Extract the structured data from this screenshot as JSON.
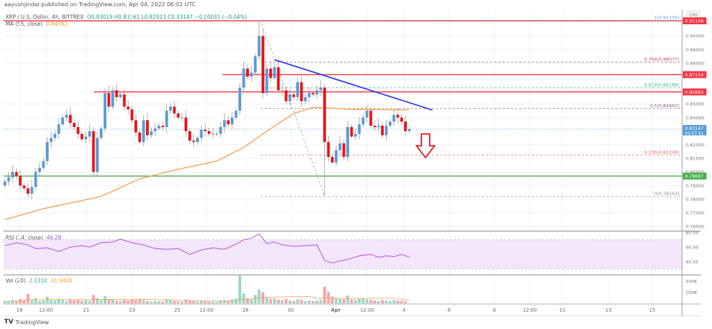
{
  "header": {
    "publisher": "aayushjindal published on TradingView.com, Apr 04, 2022 06:02 UTC",
    "symbol": "XRP / U.S. Dollar, 4h, BITTREX",
    "ohlc": "O0.83019 H0.83361 L0.82923 C0.83147 −0.00031 (−0.04%)",
    "ma_label": "MA (55, close)",
    "ma_value": "0.84562",
    "rsi_label": "RSI (14, close)",
    "rsi_value": "46.28",
    "vol_label": "Vol (20)",
    "vol_value": "2.131K",
    "vol_ma_value": "31.942K"
  },
  "footer": {
    "brand": "TradingView"
  },
  "colors": {
    "up": "#5b9bd5",
    "down": "#e8141c",
    "ma": "#f5a05a",
    "rsi": "#b35fd9",
    "trend": "#2d3ee0",
    "support": "#4caf50",
    "resistance": "#f23645"
  },
  "chart_data": {
    "type": "candlestick",
    "title": "XRP / U.S. Dollar, 4h, BITTREX",
    "currency_label": "USD",
    "ylim": [
      0.755,
      0.917
    ],
    "y_ticks": [
      "0.90000",
      "0.89000",
      "0.88000",
      "0.85000",
      "0.84000",
      "0.82000",
      "0.81000",
      "0.80000",
      "0.79000",
      "0.78000",
      "0.77000",
      "0.76000"
    ],
    "x_ticks": [
      "18",
      "12:00",
      "21",
      "23",
      "25",
      "12:00",
      "28",
      "30",
      "Apr",
      "12:00",
      "4",
      "6",
      "8",
      "12:00",
      "11",
      "13",
      "15"
    ],
    "closes": [
      0.793,
      0.796,
      0.8,
      0.797,
      0.79,
      0.788,
      0.784,
      0.789,
      0.8,
      0.803,
      0.808,
      0.822,
      0.825,
      0.828,
      0.835,
      0.84,
      0.842,
      0.836,
      0.833,
      0.828,
      0.824,
      0.826,
      0.83,
      0.8,
      0.825,
      0.832,
      0.858,
      0.848,
      0.86,
      0.855,
      0.857,
      0.848,
      0.846,
      0.838,
      0.829,
      0.822,
      0.838,
      0.827,
      0.83,
      0.832,
      0.834,
      0.833,
      0.845,
      0.848,
      0.843,
      0.84,
      0.84,
      0.83,
      0.823,
      0.822,
      0.825,
      0.831,
      0.83,
      0.828,
      0.828,
      0.828,
      0.833,
      0.838,
      0.835,
      0.84,
      0.845,
      0.862,
      0.876,
      0.87,
      0.873,
      0.885,
      0.9,
      0.858,
      0.876,
      0.869,
      0.877,
      0.86,
      0.86,
      0.852,
      0.857,
      0.855,
      0.866,
      0.852,
      0.855,
      0.858,
      0.857,
      0.86,
      0.862,
      0.822,
      0.811,
      0.807,
      0.816,
      0.821,
      0.811,
      0.833,
      0.826,
      0.828,
      0.835,
      0.84,
      0.845,
      0.834,
      0.833,
      0.834,
      0.827,
      0.834,
      0.837,
      0.842,
      0.84,
      0.837,
      0.83,
      0.83147
    ],
    "first_open": 0.79,
    "extremes": {
      "66": {
        "high": 0.9113
      },
      "83": {
        "low": 0.78193
      }
    },
    "ma55": [
      [
        0,
        0.765
      ],
      [
        10,
        0.773
      ],
      [
        25,
        0.782
      ],
      [
        35,
        0.795
      ],
      [
        45,
        0.802
      ],
      [
        55,
        0.808
      ],
      [
        62,
        0.818
      ],
      [
        68,
        0.83
      ],
      [
        75,
        0.843
      ],
      [
        80,
        0.8475
      ],
      [
        90,
        0.846
      ],
      [
        105,
        0.84562
      ]
    ],
    "horizontal_levels": [
      {
        "price": 0.91109,
        "label": "0.91109",
        "kind": "resistance"
      },
      {
        "price": 0.87154,
        "label": "0.87154",
        "kind": "resistance"
      },
      {
        "price": 0.85883,
        "label": "0.85883",
        "kind": "resistance"
      },
      {
        "price": 0.79697,
        "label": "0.79697",
        "kind": "support"
      }
    ],
    "last_price": {
      "label": "0.83147",
      "countdown": "01:57:01",
      "price": 0.83147
    },
    "fib_levels": [
      {
        "ratio": "1",
        "price": 0.9113,
        "label": "1(0.91130)",
        "color": "#5b9bd5"
      },
      {
        "ratio": "0.764",
        "price": 0.88077,
        "label": "0.764(0.88077)",
        "color": "#b2485a"
      },
      {
        "ratio": "0.618",
        "price": 0.86188,
        "label": "0.618(0.86188)",
        "color": "#2dbf8a"
      },
      {
        "ratio": "0.5",
        "price": 0.84662,
        "label": "0.5(0.84662)",
        "color": "#8c5a7a"
      },
      {
        "ratio": "0.236",
        "price": 0.81246,
        "label": "0.236(0.81246)",
        "color": "#f05a5a"
      },
      {
        "ratio": "0",
        "price": 0.78193,
        "label": "0(0.78193)",
        "color": "#888888"
      }
    ],
    "trendline": {
      "from": [
        70,
        0.8825
      ],
      "to": [
        111,
        0.8455
      ]
    },
    "rsi": {
      "ylim": [
        30,
        82
      ],
      "ticks": [
        "80.00",
        "60.00",
        "40.00"
      ],
      "band": [
        70,
        30
      ],
      "points": [
        [
          0,
          62
        ],
        [
          3,
          66
        ],
        [
          6,
          63
        ],
        [
          8,
          58
        ],
        [
          11,
          59
        ],
        [
          14,
          54
        ],
        [
          17,
          60
        ],
        [
          20,
          62
        ],
        [
          22,
          60
        ],
        [
          25,
          66
        ],
        [
          28,
          67
        ],
        [
          30,
          71
        ],
        [
          33,
          66
        ],
        [
          36,
          63
        ],
        [
          39,
          58
        ],
        [
          42,
          57
        ],
        [
          45,
          58
        ],
        [
          48,
          50
        ],
        [
          51,
          56
        ],
        [
          54,
          59
        ],
        [
          57,
          57
        ],
        [
          60,
          64
        ],
        [
          62,
          70
        ],
        [
          64,
          72
        ],
        [
          66,
          78
        ],
        [
          68,
          65
        ],
        [
          70,
          67
        ],
        [
          72,
          63
        ],
        [
          75,
          61
        ],
        [
          78,
          62
        ],
        [
          81,
          63
        ],
        [
          83,
          42
        ],
        [
          85,
          38
        ],
        [
          87,
          41
        ],
        [
          89,
          43
        ],
        [
          92,
          48
        ],
        [
          95,
          50
        ],
        [
          97,
          46
        ],
        [
          99,
          48
        ],
        [
          101,
          47
        ],
        [
          103,
          50
        ],
        [
          105,
          46.28
        ]
      ]
    },
    "volume": {
      "ticks": [
        "400K",
        "200K"
      ],
      "max": 520000,
      "values": [
        40000,
        30000,
        60000,
        35000,
        80000,
        50000,
        170000,
        60000,
        90000,
        40000,
        50000,
        120000,
        60000,
        50000,
        80000,
        60000,
        40000,
        70000,
        50000,
        60000,
        40000,
        50000,
        45000,
        150000,
        90000,
        60000,
        130000,
        70000,
        80000,
        50000,
        40000,
        60000,
        50000,
        70000,
        60000,
        80000,
        60000,
        40000,
        30000,
        40000,
        35000,
        30000,
        70000,
        60000,
        40000,
        35000,
        30000,
        70000,
        50000,
        40000,
        30000,
        45000,
        35000,
        30000,
        30000,
        25000,
        50000,
        60000,
        40000,
        70000,
        90000,
        520000,
        180000,
        90000,
        70000,
        150000,
        250000,
        200000,
        100000,
        80000,
        90000,
        70000,
        60000,
        80000,
        50000,
        40000,
        70000,
        60000,
        40000,
        50000,
        40000,
        50000,
        60000,
        300000,
        200000,
        120000,
        90000,
        80000,
        70000,
        140000,
        70000,
        60000,
        80000,
        90000,
        70000,
        60000,
        50000,
        40000,
        60000,
        50000,
        40000,
        60000,
        50000,
        45000,
        40000,
        2131
      ]
    }
  }
}
